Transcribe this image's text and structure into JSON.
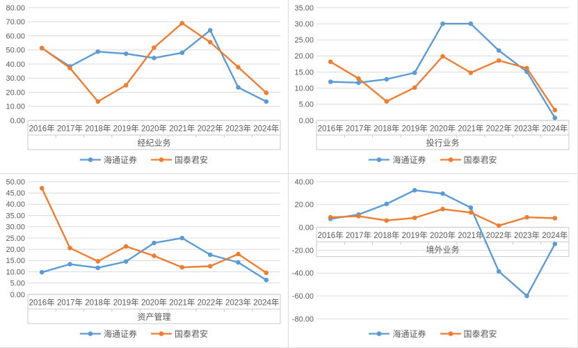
{
  "colors": {
    "series1": "#5B9BD5",
    "series2": "#ED7D31",
    "gridline": "#D9D9D9",
    "axis_line": "#BFBFBF",
    "box_border": "#C9C9C9",
    "text": "#595959",
    "background": "#FFFFFF"
  },
  "legend": {
    "series1_label": "海通证券",
    "series2_label": "国泰君安"
  },
  "chart_data": [
    {
      "type": "line",
      "title": "经纪业务",
      "categories": [
        "2016年",
        "2017年",
        "2018年",
        "2019年",
        "2020年",
        "2021年",
        "2022年",
        "2023年",
        "2024年"
      ],
      "series": [
        {
          "name": "海通证券",
          "color": "#5B9BD5",
          "values": [
            51.2,
            38.2,
            48.8,
            47.3,
            44.3,
            48.0,
            64.0,
            23.4,
            13.4
          ]
        },
        {
          "name": "国泰君安",
          "color": "#ED7D31",
          "values": [
            51.4,
            37.2,
            13.4,
            25.0,
            51.6,
            69.0,
            55.5,
            37.8,
            19.6
          ]
        }
      ],
      "ylim": [
        0,
        80
      ],
      "ytick_step": 10,
      "ytick_format": "0.00",
      "grid": true,
      "legend_position": "bottom"
    },
    {
      "type": "line",
      "title": "投行业务",
      "categories": [
        "2016年",
        "2017年",
        "2018年",
        "2019年",
        "2020年",
        "2021年",
        "2022年",
        "2023年",
        "2024年"
      ],
      "series": [
        {
          "name": "海通证券",
          "color": "#5B9BD5",
          "values": [
            12.0,
            11.7,
            12.8,
            14.8,
            30.0,
            30.0,
            21.7,
            15.1,
            0.8
          ]
        },
        {
          "name": "国泰君安",
          "color": "#ED7D31",
          "values": [
            18.2,
            13.0,
            5.9,
            10.2,
            19.9,
            14.8,
            18.6,
            16.2,
            3.2
          ]
        }
      ],
      "ylim": [
        0,
        35
      ],
      "ytick_step": 5,
      "ytick_format": "0.00",
      "grid": true,
      "legend_position": "bottom"
    },
    {
      "type": "line",
      "title": "资产管理",
      "categories": [
        "2016年",
        "2017年",
        "2018年",
        "2019年",
        "2020年",
        "2021年",
        "2022年",
        "2023年",
        "2024年"
      ],
      "series": [
        {
          "name": "海通证券",
          "color": "#5B9BD5",
          "values": [
            9.8,
            13.4,
            11.8,
            14.6,
            22.8,
            25.0,
            17.6,
            14.2,
            6.4
          ]
        },
        {
          "name": "国泰君安",
          "color": "#ED7D31",
          "values": [
            47.1,
            20.6,
            14.7,
            21.3,
            17.1,
            12.0,
            12.5,
            17.9,
            9.6
          ]
        }
      ],
      "ylim": [
        0,
        50
      ],
      "ytick_step": 5,
      "ytick_format": "0.00",
      "grid": true,
      "legend_position": "bottom"
    },
    {
      "type": "line",
      "title": "境外业务",
      "categories": [
        "2016年",
        "2017年",
        "2018年",
        "2019年",
        "2020年",
        "2021年",
        "2022年",
        "2023年",
        "2024年"
      ],
      "series": [
        {
          "name": "海通证券",
          "color": "#5B9BD5",
          "values": [
            7.5,
            11.2,
            20.5,
            32.5,
            29.5,
            17.3,
            -38.6,
            -60.0,
            -14.5
          ]
        },
        {
          "name": "国泰君安",
          "color": "#ED7D31",
          "values": [
            8.8,
            9.8,
            6.0,
            8.3,
            16.0,
            13.0,
            1.5,
            8.8,
            8.0
          ]
        }
      ],
      "ylim": [
        -80,
        40
      ],
      "ytick_step": 20,
      "ytick_format": "0.00",
      "grid": true,
      "legend_position": "bottom"
    }
  ]
}
